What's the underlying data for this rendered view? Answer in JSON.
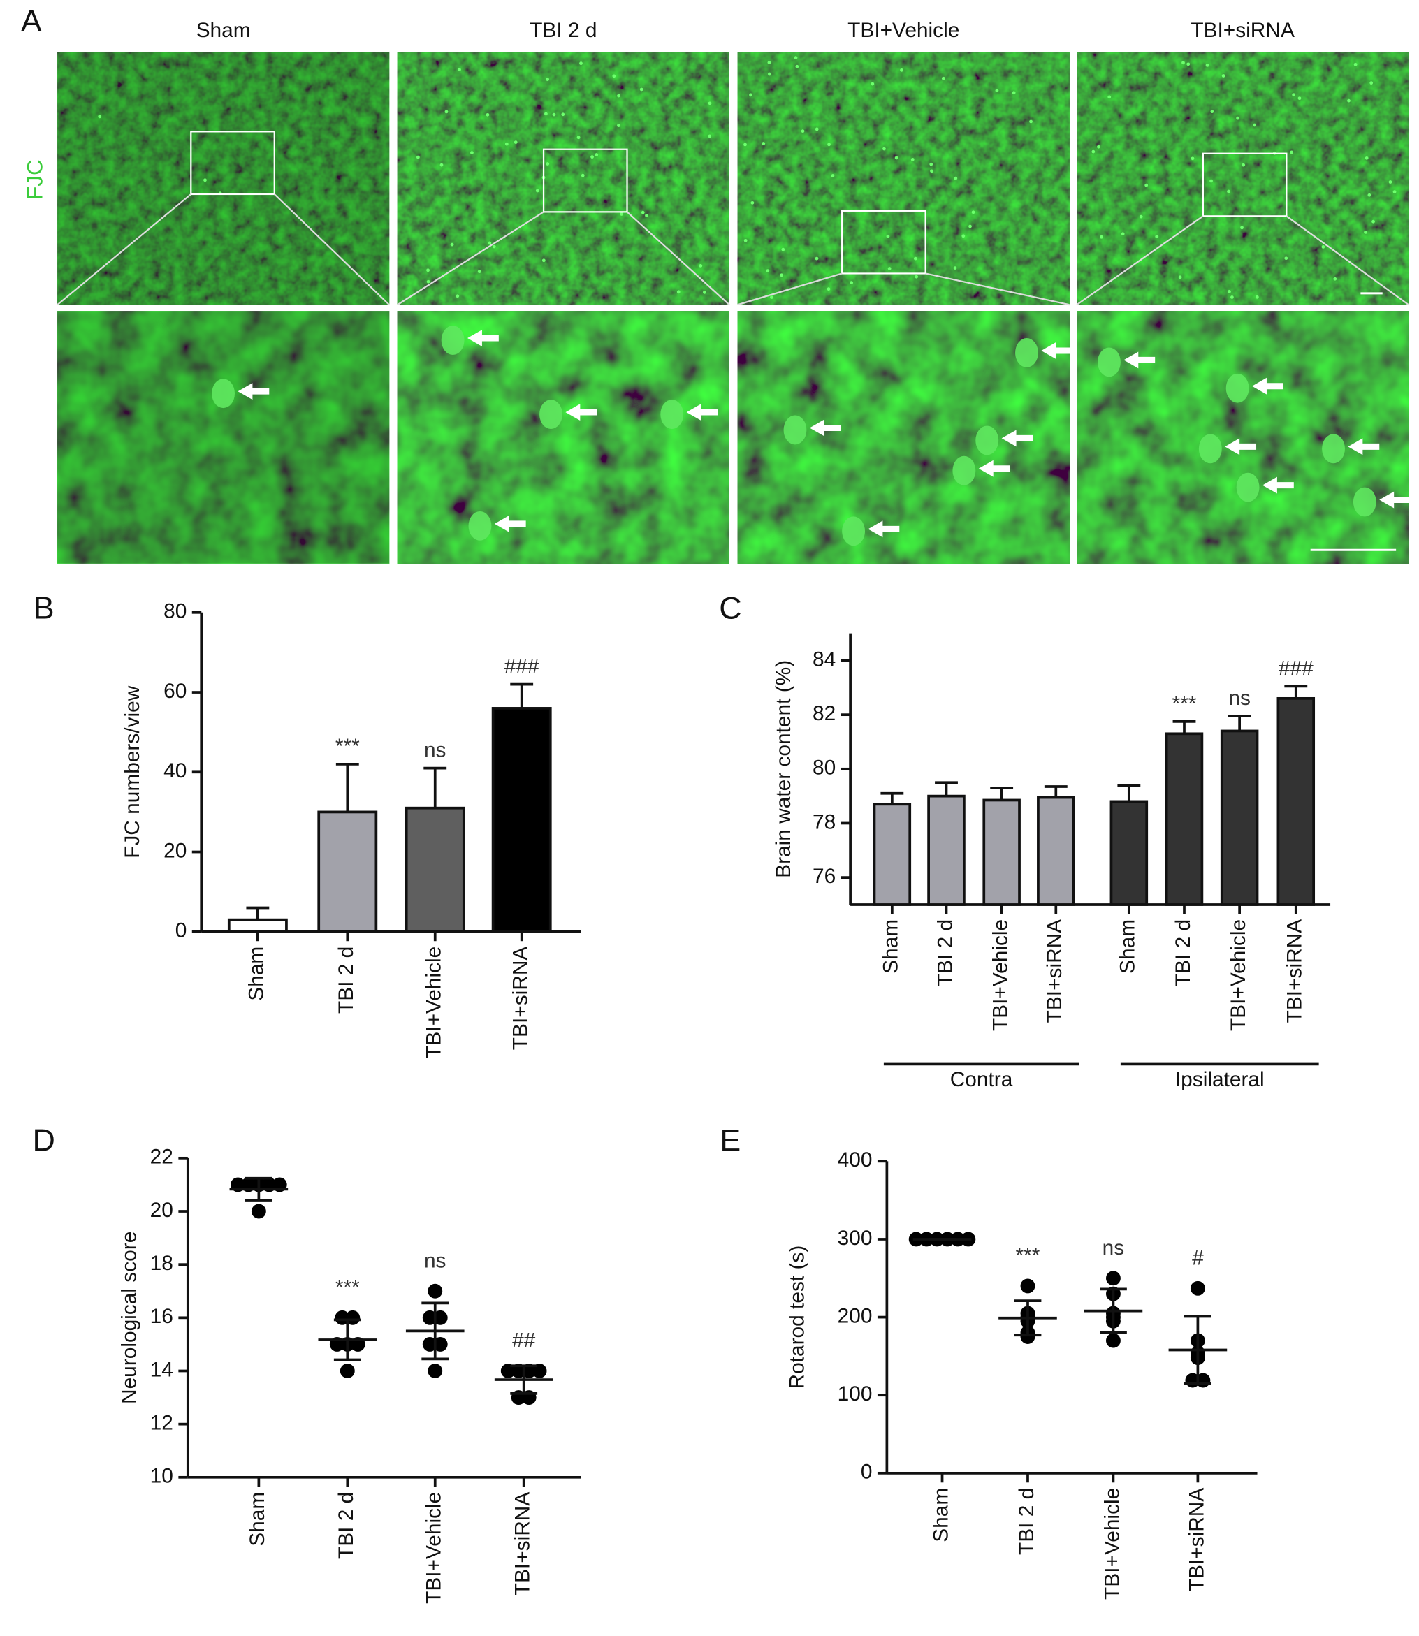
{
  "panel_a": {
    "panel_label": "A",
    "columns": [
      "Sham",
      "TBI 2 d",
      "TBI+Vehicle",
      "TBI+siRNA"
    ],
    "row_label": "FJC"
  },
  "chart_data": [
    {
      "type": "bar",
      "panel_label": "B",
      "ylabel": "FJC numbers/view",
      "categories": [
        "Sham",
        "TBI 2 d",
        "TBI+Vehicle",
        "TBI+siRNA"
      ],
      "values": [
        3,
        30,
        31,
        56
      ],
      "errors": [
        3,
        12,
        10,
        6
      ],
      "colors": [
        "#ffffff",
        "#a2a2aa",
        "#5f5f5f",
        "#000000"
      ],
      "ylim": [
        0,
        80
      ],
      "yticks": [
        0,
        20,
        40,
        60,
        80
      ],
      "annotations": [
        {
          "category": "TBI 2 d",
          "text": "***"
        },
        {
          "category": "TBI+Vehicle",
          "text": "ns"
        },
        {
          "category": "TBI+siRNA",
          "text": "###"
        }
      ]
    },
    {
      "type": "grouped_bar",
      "panel_label": "C",
      "ylabel": "Brain water content (%)",
      "groups": [
        {
          "name": "Contra",
          "categories": [
            "Sham",
            "TBI 2 d",
            "TBI+Vehicle",
            "TBI+siRNA"
          ],
          "values": [
            78.7,
            79.0,
            78.85,
            78.95
          ],
          "errors": [
            0.4,
            0.5,
            0.45,
            0.4
          ],
          "color": "#a2a2aa"
        },
        {
          "name": "Ipsilateral",
          "categories": [
            "Sham",
            "TBI 2 d",
            "TBI+Vehicle",
            "TBI+siRNA"
          ],
          "values": [
            78.8,
            81.3,
            81.4,
            82.6
          ],
          "errors": [
            0.6,
            0.45,
            0.55,
            0.45
          ],
          "color": "#333333"
        }
      ],
      "ylim": [
        75,
        85
      ],
      "yticks": [
        76,
        78,
        80,
        82,
        84
      ],
      "annotations": [
        {
          "group": "Ipsilateral",
          "category": "TBI 2 d",
          "text": "***"
        },
        {
          "group": "Ipsilateral",
          "category": "TBI+Vehicle",
          "text": "ns"
        },
        {
          "group": "Ipsilateral",
          "category": "TBI+siRNA",
          "text": "###"
        }
      ]
    },
    {
      "type": "dot",
      "panel_label": "D",
      "ylabel": "Neurological score",
      "categories": [
        "Sham",
        "TBI 2 d",
        "TBI+Vehicle",
        "TBI+siRNA"
      ],
      "points": [
        [
          21,
          21,
          21,
          21,
          21,
          20
        ],
        [
          16,
          16,
          15,
          15,
          15,
          14
        ],
        [
          17,
          16,
          16,
          15,
          15,
          14
        ],
        [
          14,
          14,
          14,
          14,
          13,
          13
        ]
      ],
      "means": [
        20.83,
        15.17,
        15.5,
        13.67
      ],
      "sds": [
        0.41,
        0.75,
        1.05,
        0.52
      ],
      "ylim": [
        10,
        22
      ],
      "yticks": [
        10,
        12,
        14,
        16,
        18,
        20,
        22
      ],
      "annotations": [
        {
          "category": "TBI 2 d",
          "text": "***"
        },
        {
          "category": "TBI+Vehicle",
          "text": "ns"
        },
        {
          "category": "TBI+siRNA",
          "text": "##"
        }
      ]
    },
    {
      "type": "dot",
      "panel_label": "E",
      "ylabel": "Rotarod test (s)",
      "categories": [
        "Sham",
        "TBI 2 d",
        "TBI+Vehicle",
        "TBI+siRNA"
      ],
      "points": [
        [
          300,
          300,
          300,
          300,
          300,
          300
        ],
        [
          240,
          205,
          200,
          195,
          180,
          175
        ],
        [
          250,
          230,
          205,
          200,
          195,
          170
        ],
        [
          237,
          170,
          154,
          148,
          119,
          119
        ]
      ],
      "means": [
        300,
        199,
        208,
        158
      ],
      "sds": [
        0,
        22,
        28,
        43
      ],
      "ylim": [
        0,
        400
      ],
      "yticks": [
        0,
        100,
        200,
        300,
        400
      ],
      "annotations": [
        {
          "category": "TBI 2 d",
          "text": "***"
        },
        {
          "category": "TBI+Vehicle",
          "text": "ns"
        },
        {
          "category": "TBI+siRNA",
          "text": "#"
        }
      ]
    }
  ]
}
